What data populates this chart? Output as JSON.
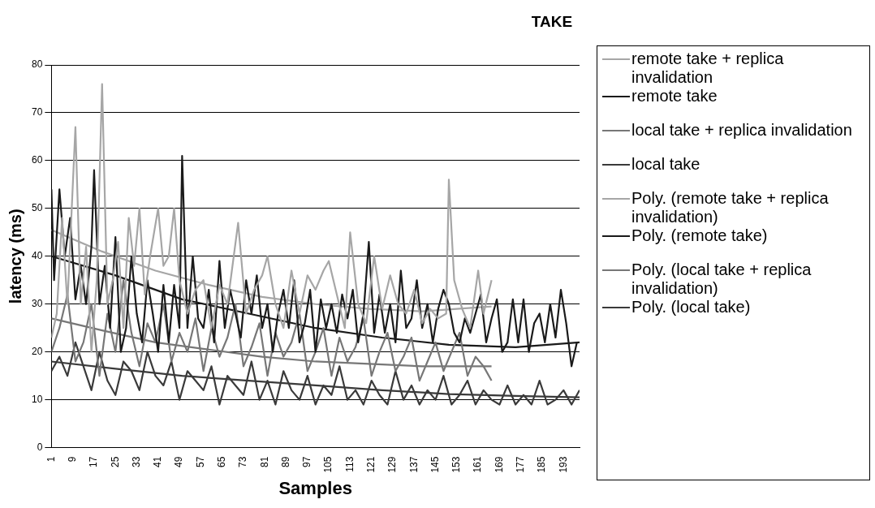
{
  "chart_data": {
    "type": "line",
    "title": "TAKE",
    "xlabel": "Samples",
    "ylabel": "latency (ms)",
    "xlim": [
      1,
      199
    ],
    "xticks": [
      1,
      9,
      17,
      25,
      33,
      41,
      49,
      57,
      65,
      73,
      81,
      89,
      97,
      105,
      113,
      121,
      129,
      137,
      145,
      153,
      161,
      169,
      177,
      185,
      193
    ],
    "ylim": [
      0,
      80
    ],
    "yticks": [
      0,
      10,
      20,
      30,
      40,
      50,
      60,
      70,
      80
    ],
    "grid": "y",
    "legend": "right",
    "marker": "none",
    "line_style": "solid",
    "series": [
      {
        "name": "remote take + replica invalidation",
        "color": "#a6a6a6",
        "x": [
          1,
          3,
          5,
          7,
          10,
          12,
          14,
          16,
          18,
          20,
          22,
          24,
          26,
          28,
          30,
          32,
          34,
          36,
          38,
          41,
          43,
          45,
          47,
          49,
          52,
          55,
          58,
          61,
          64,
          67,
          71,
          74,
          77,
          80,
          82,
          85,
          88,
          91,
          94,
          97,
          100,
          103,
          105,
          108,
          111,
          113,
          116,
          119,
          122,
          125,
          128,
          131,
          134,
          137,
          140,
          143,
          146,
          149,
          150,
          152,
          155,
          158,
          161,
          163,
          166
        ],
        "values": [
          23,
          28,
          48,
          30,
          67,
          30,
          42,
          20,
          35,
          76,
          30,
          35,
          43,
          25,
          48,
          38,
          50,
          32,
          40,
          50,
          38,
          40,
          50,
          35,
          28,
          33,
          35,
          25,
          34,
          30,
          47,
          28,
          33,
          36,
          40,
          30,
          25,
          37,
          28,
          36,
          33,
          37,
          39,
          32,
          25,
          45,
          30,
          26,
          40,
          29,
          36,
          30,
          28,
          33,
          26,
          29,
          27,
          28,
          56,
          35,
          29,
          25,
          37,
          28,
          35
        ]
      },
      {
        "name": "remote take",
        "color": "#1a1a1a",
        "x": [
          1,
          2,
          4,
          6,
          8,
          10,
          12,
          14,
          16,
          17,
          19,
          21,
          23,
          25,
          27,
          29,
          31,
          33,
          35,
          37,
          39,
          41,
          43,
          45,
          47,
          49,
          50,
          52,
          54,
          56,
          58,
          60,
          62,
          64,
          66,
          68,
          70,
          72,
          74,
          76,
          78,
          80,
          82,
          84,
          86,
          88,
          90,
          92,
          94,
          96,
          98,
          100,
          102,
          104,
          106,
          108,
          110,
          112,
          114,
          116,
          118,
          120,
          122,
          124,
          126,
          128,
          130,
          132,
          134,
          136,
          138,
          140,
          142,
          144,
          146,
          148,
          150,
          152,
          154,
          156,
          158,
          160,
          162,
          164,
          166,
          168,
          170,
          172,
          174,
          176,
          178,
          180,
          182,
          184,
          186,
          188,
          190,
          192,
          194,
          196,
          198
        ],
        "values": [
          54,
          35,
          54,
          40,
          48,
          31,
          38,
          30,
          42,
          58,
          30,
          38,
          25,
          44,
          20,
          25,
          40,
          28,
          22,
          35,
          28,
          20,
          34,
          22,
          34,
          25,
          61,
          25,
          40,
          27,
          25,
          33,
          22,
          39,
          25,
          33,
          28,
          23,
          35,
          28,
          36,
          25,
          30,
          20,
          28,
          33,
          25,
          35,
          22,
          26,
          33,
          20,
          31,
          25,
          30,
          24,
          32,
          27,
          33,
          22,
          28,
          43,
          24,
          32,
          24,
          30,
          22,
          37,
          25,
          27,
          35,
          25,
          30,
          22,
          29,
          33,
          30,
          24,
          22,
          27,
          24,
          28,
          32,
          22,
          27,
          31,
          20,
          22,
          31,
          22,
          31,
          20,
          26,
          28,
          22,
          30,
          23,
          33,
          26,
          17,
          22
        ]
      },
      {
        "name": "local take + replica invalidation",
        "color": "#777777",
        "x": [
          1,
          4,
          7,
          10,
          13,
          16,
          19,
          22,
          25,
          28,
          31,
          34,
          37,
          40,
          43,
          46,
          49,
          52,
          55,
          58,
          61,
          64,
          67,
          70,
          73,
          76,
          79,
          82,
          85,
          88,
          91,
          94,
          97,
          100,
          103,
          106,
          109,
          112,
          115,
          118,
          121,
          124,
          127,
          130,
          133,
          136,
          139,
          142,
          145,
          148,
          151,
          154,
          157,
          160,
          163,
          166
        ],
        "values": [
          20,
          25,
          32,
          18,
          22,
          30,
          15,
          28,
          20,
          35,
          24,
          17,
          26,
          22,
          30,
          18,
          24,
          20,
          27,
          16,
          25,
          19,
          23,
          30,
          17,
          21,
          26,
          15,
          24,
          19,
          22,
          28,
          16,
          20,
          25,
          15,
          23,
          18,
          21,
          27,
          15,
          20,
          24,
          16,
          19,
          23,
          14,
          18,
          22,
          16,
          20,
          24,
          15,
          19,
          17,
          14
        ]
      },
      {
        "name": "local take",
        "color": "#3a3a3a",
        "x": [
          1,
          4,
          7,
          10,
          13,
          16,
          19,
          22,
          25,
          28,
          31,
          34,
          37,
          40,
          43,
          46,
          49,
          52,
          55,
          58,
          61,
          64,
          67,
          70,
          73,
          76,
          79,
          82,
          85,
          88,
          91,
          94,
          97,
          100,
          103,
          106,
          109,
          112,
          115,
          118,
          121,
          124,
          127,
          130,
          133,
          136,
          139,
          142,
          145,
          148,
          151,
          154,
          157,
          160,
          163,
          166,
          169,
          172,
          175,
          178,
          181,
          184,
          187,
          190,
          193,
          196,
          199
        ],
        "values": [
          16,
          19,
          15,
          22,
          17,
          12,
          20,
          14,
          11,
          18,
          16,
          12,
          20,
          15,
          13,
          18,
          10,
          16,
          14,
          12,
          17,
          9,
          15,
          13,
          11,
          18,
          10,
          14,
          9,
          16,
          12,
          10,
          15,
          9,
          13,
          11,
          17,
          10,
          12,
          9,
          14,
          11,
          9,
          16,
          10,
          13,
          9,
          12,
          10,
          15,
          9,
          11,
          14,
          9,
          12,
          10,
          9,
          13,
          9,
          11,
          9,
          14,
          9,
          10,
          12,
          9,
          12
        ]
      },
      {
        "name": "Poly. (remote take + replica invalidation)",
        "color": "#a6a6a6",
        "x": [
          1,
          20,
          40,
          60,
          80,
          100,
          120,
          140,
          166
        ],
        "values": [
          45.5,
          41,
          37,
          34,
          31.5,
          30,
          29,
          28.5,
          29.5
        ]
      },
      {
        "name": "Poly. (remote take)",
        "color": "#1a1a1a",
        "x": [
          1,
          25,
          50,
          75,
          100,
          125,
          150,
          175,
          199
        ],
        "values": [
          40,
          36,
          31,
          28,
          25,
          23,
          21.5,
          21,
          22
        ]
      },
      {
        "name": "Poly. (local take + replica invalidation)",
        "color": "#777777",
        "x": [
          1,
          20,
          40,
          60,
          80,
          100,
          120,
          140,
          166
        ],
        "values": [
          27,
          24.5,
          22,
          20.5,
          19,
          18,
          17.5,
          17,
          17
        ]
      },
      {
        "name": "Poly. (local take)",
        "color": "#3a3a3a",
        "x": [
          1,
          25,
          50,
          75,
          100,
          125,
          150,
          175,
          199
        ],
        "values": [
          18,
          16.5,
          15,
          14,
          13,
          12,
          11.2,
          10.8,
          10.5
        ]
      }
    ]
  }
}
